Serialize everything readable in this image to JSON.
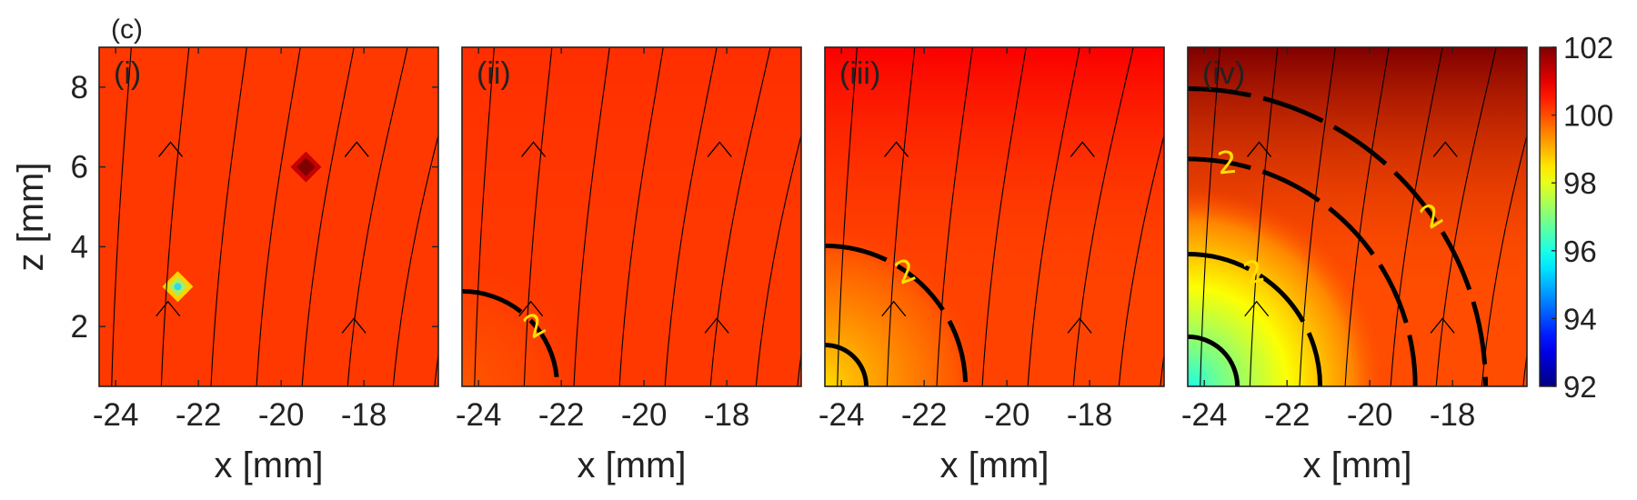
{
  "figure_label": "(c)",
  "colors": {
    "baseline": "#ff5500",
    "cold_spot": "#a6f0a0",
    "hot_spot": "#8a0000",
    "streamline": "#000000",
    "contour": "#000000",
    "contour_label": "#ffe100"
  },
  "colorbar": {
    "min": 92,
    "max": 102,
    "ticks": [
      "92",
      "94",
      "96",
      "98",
      "100",
      "102"
    ],
    "colormap": "jet"
  },
  "chart_data": [
    {
      "type": "heatmap",
      "panel": "(i)",
      "xlabel": "x [mm]",
      "ylabel": "z [mm]",
      "xlim": [
        -24.4,
        -16.2
      ],
      "ylim": [
        0.5,
        9.0
      ],
      "xticks": [
        "-24",
        "-22",
        "-20",
        "-18"
      ],
      "yticks": [
        "2",
        "4",
        "6",
        "8"
      ],
      "background_value": 100.2,
      "features": [
        {
          "kind": "cold-spot",
          "x": -22.5,
          "z": 3.0,
          "value": 97
        },
        {
          "kind": "hot-spot",
          "x": -19.4,
          "z": 6.0,
          "value": 102
        }
      ],
      "contours": []
    },
    {
      "type": "heatmap",
      "panel": "(ii)",
      "xlabel": "x [mm]",
      "ylabel": "",
      "xlim": [
        -24.4,
        -16.2
      ],
      "ylim": [
        0.5,
        9.0
      ],
      "xticks": [
        "-24",
        "-22",
        "-20",
        "-18"
      ],
      "center": {
        "x": -24.4,
        "z": 0.5
      },
      "center_value": 99.9,
      "edge_value": 100.2,
      "radial_scale_mm": 3.0,
      "top_value": 100.3,
      "contours": [
        {
          "label": "2",
          "radius_mm": 2.3,
          "label_angle_deg": 40
        }
      ]
    },
    {
      "type": "heatmap",
      "panel": "(iii)",
      "xlabel": "x [mm]",
      "ylabel": "",
      "xlim": [
        -24.4,
        -16.2
      ],
      "ylim": [
        0.5,
        9.0
      ],
      "xticks": [
        "-24",
        "-22",
        "-20",
        "-18"
      ],
      "center": {
        "x": -24.4,
        "z": 0.5
      },
      "center_value": 98.6,
      "edge_value": 100.1,
      "radial_scale_mm": 3.8,
      "top_value": 100.8,
      "contours": [
        {
          "label": "",
          "radius_mm": 1.0,
          "label_angle_deg": 45
        },
        {
          "label": "2",
          "radius_mm": 3.4,
          "label_angle_deg": 55
        }
      ]
    },
    {
      "type": "heatmap",
      "panel": "(iv)",
      "xlabel": "x [mm]",
      "ylabel": "",
      "xlim": [
        -24.4,
        -16.2
      ],
      "ylim": [
        0.5,
        9.0
      ],
      "xticks": [
        "-24",
        "-22",
        "-20",
        "-18"
      ],
      "center": {
        "x": -24.4,
        "z": 0.5
      },
      "center_value": 96.0,
      "edge_value": 100.0,
      "radial_scale_mm": 4.8,
      "top_value": 102.0,
      "contours": [
        {
          "label": "",
          "radius_mm": 1.2,
          "label_angle_deg": 45
        },
        {
          "label": "2",
          "radius_mm": 3.2,
          "label_angle_deg": 60
        },
        {
          "label": "2",
          "radius_mm": 5.5,
          "label_angle_deg": 80
        },
        {
          "label": "2",
          "radius_mm": 7.2,
          "label_angle_deg": 35
        }
      ]
    }
  ]
}
